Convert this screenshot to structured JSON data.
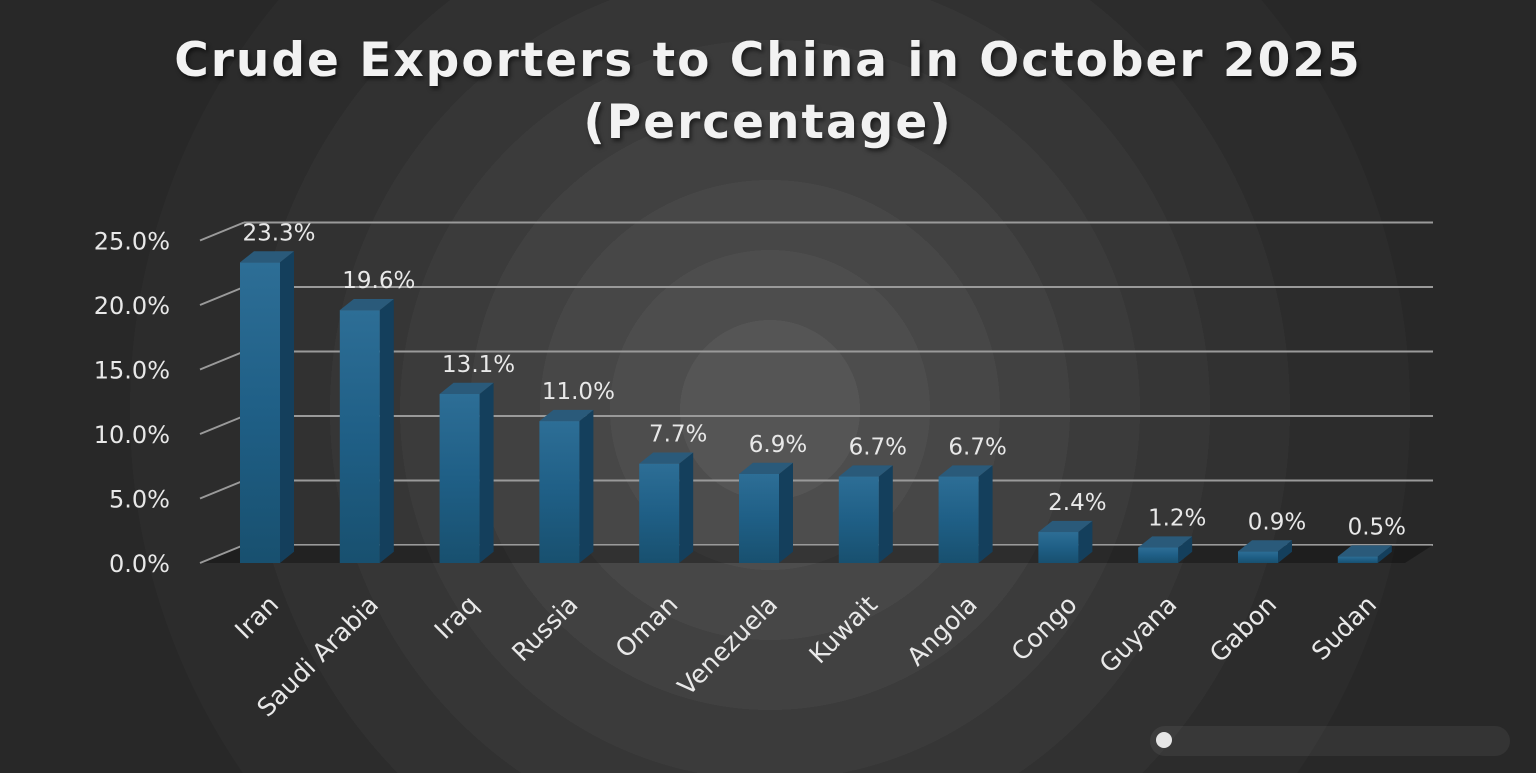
{
  "chart_data": {
    "type": "bar",
    "title": "Crude Exporters to China in October 2025 (Percentage)",
    "categories": [
      "Iran",
      "Saudi Arabia",
      "Iraq",
      "Russia",
      "Oman",
      "Venezuela",
      "Kuwait",
      "Angola",
      "Congo",
      "Guyana",
      "Gabon",
      "Sudan"
    ],
    "values": [
      23.3,
      19.6,
      13.1,
      11.0,
      7.7,
      6.9,
      6.7,
      6.7,
      2.4,
      1.2,
      0.9,
      0.5
    ],
    "data_labels": [
      "23.3%",
      "19.6%",
      "13.1%",
      "11.0%",
      "7.7%",
      "6.9%",
      "6.7%",
      "6.7%",
      "2.4%",
      "1.2%",
      "0.9%",
      "0.5%"
    ],
    "y_ticks": [
      0,
      5,
      10,
      15,
      20,
      25
    ],
    "y_tick_labels": [
      "0.0%",
      "5.0%",
      "10.0%",
      "15.0%",
      "20.0%",
      "25.0%"
    ],
    "ylim": [
      0,
      25
    ],
    "xlabel": "",
    "ylabel": "",
    "grid": true,
    "legend": "none",
    "bar_color": "#1f5f86",
    "bar_top_color": "#2a5a7a",
    "bar_side_color": "#143f5c",
    "gridline_color": "#9a9a9a",
    "text_color": "#e8e8e8"
  }
}
